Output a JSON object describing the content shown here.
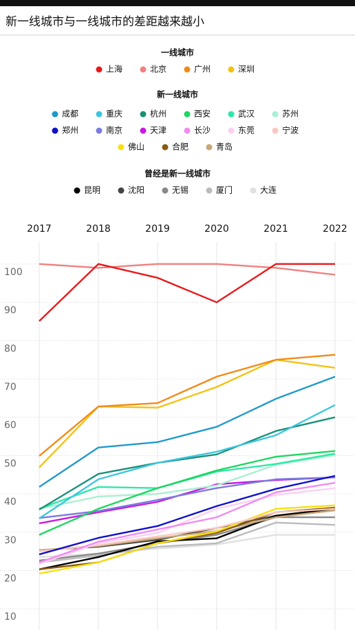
{
  "chart_data": {
    "type": "line",
    "title": "新一线城市与一线城市的差距越来越小",
    "categories": [
      "2017",
      "2018",
      "2019",
      "2020",
      "2021",
      "2022"
    ],
    "ylim": [
      5,
      105
    ],
    "yticks": [
      10,
      20,
      30,
      40,
      50,
      60,
      70,
      80,
      90,
      100
    ],
    "grid": true,
    "groups": [
      {
        "name": "一线城市",
        "series": [
          {
            "name": "上海",
            "color": "#e8191b",
            "values": [
              85.1,
              100,
              96.4,
              90,
              100,
              100
            ]
          },
          {
            "name": "北京",
            "color": "#f08080",
            "values": [
              100,
              99,
              100,
              100,
              99,
              97.2
            ]
          },
          {
            "name": "广州",
            "color": "#f28a17",
            "values": [
              49.9,
              62.8,
              63.7,
              70.6,
              75,
              76.3
            ]
          },
          {
            "name": "深圳",
            "color": "#f5c211",
            "values": [
              46.9,
              62.8,
              62.5,
              67.9,
              75,
              72.9
            ]
          }
        ]
      },
      {
        "name": "新一线城市",
        "series": [
          {
            "name": "成都",
            "color": "#1f9ac9",
            "values": [
              41.8,
              52.1,
              53.5,
              57.5,
              64.8,
              70.6
            ]
          },
          {
            "name": "重庆",
            "color": "#3ec6e0",
            "values": [
              33.6,
              43.8,
              48.1,
              51,
              55.3,
              63.2
            ]
          },
          {
            "name": "杭州",
            "color": "#1a9178",
            "values": [
              35.9,
              45.2,
              48.1,
              50.3,
              56.4,
              60
            ]
          },
          {
            "name": "西安",
            "color": "#1ed660",
            "values": [
              29.3,
              36.1,
              41.5,
              46.1,
              49.7,
              51.2
            ]
          },
          {
            "name": "武汉",
            "color": "#2ee8a8",
            "values": [
              36.1,
              41.8,
              41.5,
              45.8,
              47.8,
              50.5
            ]
          },
          {
            "name": "苏州",
            "color": "#a8f0d0",
            "values": [
              36.1,
              39.3,
              40,
              42.2,
              47.6,
              50.1
            ]
          },
          {
            "name": "郑州",
            "color": "#1010c8",
            "values": [
              24.2,
              28.5,
              31.6,
              36.8,
              41.3,
              44.7
            ]
          },
          {
            "name": "南京",
            "color": "#7b7be0",
            "values": [
              33.7,
              35.5,
              38.4,
              41.5,
              43.8,
              44.3
            ]
          },
          {
            "name": "天津",
            "color": "#c81ae0",
            "values": [
              32.3,
              35.2,
              37.9,
              42.5,
              43.6,
              44.3
            ]
          },
          {
            "name": "长沙",
            "color": "#f08cf0",
            "values": [
              22.1,
              27.5,
              30.7,
              33.9,
              40.4,
              42.9
            ]
          },
          {
            "name": "东莞",
            "color": "#fcd0f0",
            "values": [
              21.7,
              27.1,
              29.8,
              36.1,
              39.7,
              41.5
            ]
          },
          {
            "name": "宁波",
            "color": "#f8c8c0",
            "values": [
              25,
              26.6,
              28.9,
              31.1,
              35.2,
              36.1
            ]
          },
          {
            "name": "佛山",
            "color": "#f8e010",
            "values": [
              19.2,
              22.1,
              27.1,
              30.2,
              36.1,
              37
            ]
          },
          {
            "name": "合肥",
            "color": "#8b5a10",
            "values": [
              20.3,
              22.1,
              27.1,
              29.8,
              35.2,
              36.4
            ]
          },
          {
            "name": "青岛",
            "color": "#c8a878",
            "values": [
              25.3,
              26.4,
              28.4,
              30.3,
              33.9,
              35.7
            ]
          }
        ]
      },
      {
        "name": "曾经是新一线城市",
        "series": [
          {
            "name": "昆明",
            "color": "#000000",
            "values": [
              20.3,
              23.5,
              27.6,
              28.4,
              34.3,
              36.1
            ]
          },
          {
            "name": "沈阳",
            "color": "#444444",
            "values": [
              25.3,
              26.2,
              28,
              31.1,
              34.3,
              36.1
            ]
          },
          {
            "name": "无锡",
            "color": "#888888",
            "values": [
              22.6,
              24.4,
              27.1,
              29.3,
              33.9,
              33.9
            ]
          },
          {
            "name": "厦门",
            "color": "#bbbbbb",
            "values": [
              22.1,
              23.9,
              26.2,
              27.1,
              32.5,
              31.9
            ]
          },
          {
            "name": "大连",
            "color": "#e0e0e0",
            "values": [
              23.5,
              24.4,
              25.7,
              26.8,
              29.3,
              29.3
            ]
          }
        ]
      }
    ]
  }
}
